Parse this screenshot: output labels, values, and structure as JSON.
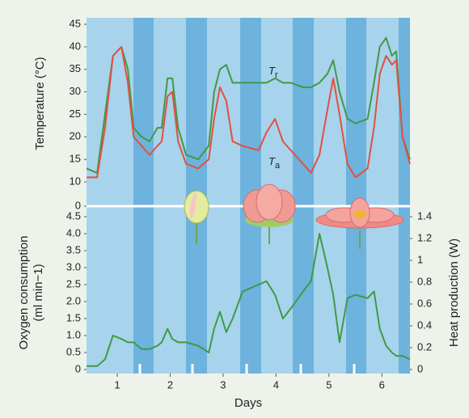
{
  "chart_data": [
    {
      "type": "line",
      "ylabel": "Temperature (°C)",
      "annotations": [
        {
          "text": "T",
          "subscript": "r"
        },
        {
          "text": "T",
          "subscript": "a"
        }
      ],
      "x": [
        0.42,
        0.62,
        0.77,
        0.92,
        1.08,
        1.2,
        1.31,
        1.46,
        1.61,
        1.76,
        1.84,
        1.95,
        2.04,
        2.15,
        2.3,
        2.53,
        2.73,
        2.83,
        2.94,
        3.06,
        3.18,
        3.37,
        3.67,
        3.82,
        3.98,
        4.13,
        4.28,
        4.51,
        4.66,
        4.82,
        4.97,
        5.08,
        5.2,
        5.35,
        5.5,
        5.73,
        5.85,
        5.96,
        6.08,
        6.19,
        6.27,
        6.39,
        6.53
      ],
      "xlim": [
        0.42,
        6.53
      ],
      "ylim": [
        0,
        45
      ],
      "yticks": [
        0,
        10,
        15,
        20,
        25,
        30,
        35,
        40,
        45
      ],
      "series": [
        {
          "color": "#3f9a45",
          "values": [
            13,
            12,
            25,
            38,
            40,
            35,
            22,
            20,
            19,
            22,
            22,
            33,
            33,
            22,
            16,
            15,
            18,
            30,
            35,
            36,
            32,
            32,
            32,
            32,
            33,
            32,
            32,
            31,
            31,
            32,
            34,
            37,
            30,
            24,
            23,
            24,
            32,
            40,
            42,
            38,
            39,
            20,
            15
          ]
        },
        {
          "color": "#e2503f",
          "values": [
            11,
            11,
            22,
            38,
            40,
            32,
            20,
            18,
            16,
            18,
            19,
            29,
            30,
            19,
            14,
            13,
            15,
            24,
            31,
            28,
            19,
            18,
            17,
            21,
            24,
            19,
            17,
            14,
            12,
            16,
            26,
            33,
            25,
            14,
            11,
            13,
            22,
            34,
            38,
            36,
            37,
            20,
            14
          ]
        }
      ]
    },
    {
      "type": "line",
      "xlabel": "Days",
      "ylabel": [
        "Oxygen consumption",
        "(ml min−1)"
      ],
      "y2label": "Heat production (W)",
      "x": [
        0.42,
        0.62,
        0.77,
        0.92,
        1.08,
        1.2,
        1.31,
        1.46,
        1.61,
        1.76,
        1.84,
        1.95,
        2.04,
        2.15,
        2.3,
        2.53,
        2.73,
        2.83,
        2.94,
        3.06,
        3.18,
        3.37,
        3.67,
        3.82,
        3.98,
        4.13,
        4.28,
        4.51,
        4.66,
        4.82,
        4.97,
        5.08,
        5.2,
        5.35,
        5.5,
        5.73,
        5.85,
        5.96,
        6.08,
        6.19,
        6.27,
        6.39,
        6.53
      ],
      "xlim": [
        0.42,
        6.53
      ],
      "xticks": [
        1,
        2,
        3,
        4,
        5,
        6
      ],
      "ylim": [
        0,
        4.5
      ],
      "yticks": [
        0,
        0.5,
        {
          "value": 1,
          "label": "1.0"
        },
        1.5,
        {
          "value": 2,
          "label": "2.0"
        },
        2.5,
        {
          "value": 3,
          "label": "3.0"
        },
        3.5,
        {
          "value": 4,
          "label": "4.0"
        },
        4.5
      ],
      "y2lim": [
        0,
        1.4
      ],
      "y2ticks": [
        0,
        0.2,
        0.4,
        0.6,
        0.8,
        1,
        1.2,
        1.4
      ],
      "series": [
        {
          "color": "#3f9a45",
          "values": [
            0.1,
            0.1,
            0.3,
            1.0,
            0.9,
            0.8,
            0.8,
            0.6,
            0.6,
            0.7,
            0.8,
            1.2,
            0.9,
            0.8,
            0.8,
            0.7,
            0.5,
            1.2,
            1.7,
            1.1,
            1.5,
            2.3,
            2.5,
            2.6,
            2.2,
            1.5,
            1.8,
            2.3,
            2.6,
            4.0,
            3.0,
            2.2,
            0.8,
            2.1,
            2.2,
            2.1,
            2.3,
            1.2,
            0.7,
            0.5,
            0.4,
            0.4,
            0.3
          ]
        }
      ]
    }
  ]
}
